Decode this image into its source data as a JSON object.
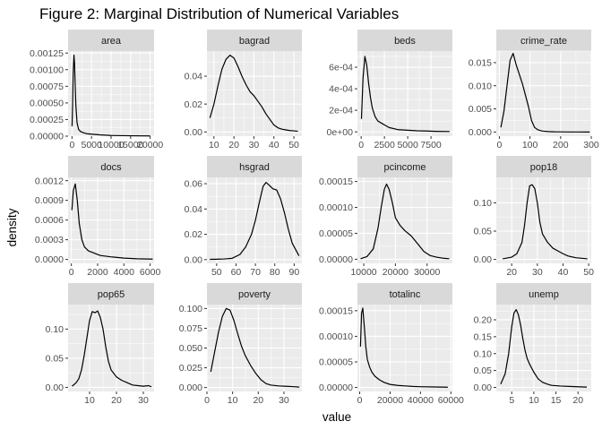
{
  "title": "Figure 2: Marginal Distribution of Numerical Variables",
  "chart_data": {
    "type": "line",
    "title": "Figure 2: Marginal Distribution of Numerical Variables",
    "xlabel": "value",
    "ylabel": "density",
    "facets": [
      {
        "name": "area",
        "xlim": [
          -1000,
          21000
        ],
        "ylim": [
          0,
          0.00128
        ],
        "xticks": [
          0,
          5000,
          10000,
          15000,
          20000
        ],
        "xtick_labels": [
          "0",
          "5000",
          "10000",
          "15000",
          "20000"
        ],
        "yticks": [
          0,
          0.00025,
          0.0005,
          0.00075,
          0.001,
          0.00125
        ],
        "ytick_labels": [
          "0.00000",
          "0.00025",
          "0.00050",
          "0.00075",
          "0.00100",
          "0.00125"
        ],
        "x": [
          15,
          150,
          300,
          500,
          650,
          800,
          1000,
          1300,
          1700,
          2200,
          3000,
          4000,
          5000,
          7000,
          10000,
          15000,
          20000
        ],
        "y": [
          0.00015,
          0.00045,
          0.00095,
          0.00122,
          0.0011,
          0.0008,
          0.00045,
          0.0002,
          0.0001,
          7e-05,
          5e-05,
          3.5e-05,
          3e-05,
          2e-05,
          1e-05,
          6e-06,
          3e-06
        ]
      },
      {
        "name": "bagrad",
        "xlim": [
          6.5,
          54
        ],
        "ylim": [
          -0.003,
          0.058
        ],
        "xticks": [
          10,
          20,
          30,
          40,
          50
        ],
        "xtick_labels": [
          "10",
          "20",
          "30",
          "40",
          "50"
        ],
        "yticks": [
          0,
          0.02,
          0.04
        ],
        "ytick_labels": [
          "0.00",
          "0.02",
          "0.04"
        ],
        "x": [
          8,
          10,
          12,
          14,
          16,
          18,
          20,
          22,
          24,
          26,
          28,
          30,
          32,
          34,
          36,
          38,
          40,
          42,
          44,
          46,
          48,
          50,
          52
        ],
        "y": [
          0.01,
          0.02,
          0.033,
          0.045,
          0.052,
          0.055,
          0.053,
          0.047,
          0.04,
          0.034,
          0.029,
          0.026,
          0.022,
          0.018,
          0.013,
          0.009,
          0.005,
          0.003,
          0.002,
          0.0015,
          0.001,
          0.0008,
          0.0005
        ]
      },
      {
        "name": "beds",
        "xlim": [
          -400,
          9800
        ],
        "ylim": [
          -4e-05,
          0.00075
        ],
        "xticks": [
          0,
          2500,
          5000,
          7500
        ],
        "xtick_labels": [
          "0",
          "2500",
          "5000",
          "7500"
        ],
        "yticks": [
          0,
          0.0002,
          0.0004,
          0.0006
        ],
        "ytick_labels": [
          "0e+00",
          "2e-04",
          "4e-04",
          "6e-04"
        ],
        "x": [
          30,
          200,
          400,
          600,
          800,
          1000,
          1200,
          1500,
          1800,
          2200,
          2600,
          3000,
          3500,
          4000,
          5000,
          6000,
          7000,
          8000,
          9500
        ],
        "y": [
          0.00012,
          0.0005,
          0.0007,
          0.00062,
          0.00045,
          0.00032,
          0.00022,
          0.00014,
          0.0001,
          8e-05,
          6e-05,
          4e-05,
          3e-05,
          2e-05,
          1.5e-05,
          1e-05,
          8e-06,
          5e-06,
          3e-06
        ]
      },
      {
        "name": "crime_rate",
        "xlim": [
          -10,
          300
        ],
        "ylim": [
          -0.0009,
          0.0175
        ],
        "xticks": [
          0,
          100,
          200,
          300
        ],
        "xtick_labels": [
          "0",
          "100",
          "200",
          "300"
        ],
        "yticks": [
          0,
          0.005,
          0.01,
          0.015
        ],
        "ytick_labels": [
          "0.000",
          "0.005",
          "0.010",
          "0.015"
        ],
        "x": [
          5,
          15,
          25,
          35,
          45,
          55,
          65,
          75,
          85,
          95,
          105,
          115,
          125,
          140,
          160,
          180,
          200,
          230,
          260,
          295
        ],
        "y": [
          0.001,
          0.0045,
          0.01,
          0.0155,
          0.017,
          0.0145,
          0.0125,
          0.0105,
          0.008,
          0.0055,
          0.0025,
          0.001,
          0.0005,
          0.0002,
          0.0001,
          5e-05,
          3e-05,
          1e-05,
          5e-06,
          2e-06
        ]
      },
      {
        "name": "docs",
        "xlim": [
          -250,
          6300
        ],
        "ylim": [
          -6e-05,
          0.00125
        ],
        "xticks": [
          0,
          2000,
          4000,
          6000
        ],
        "xtick_labels": [
          "0",
          "2000",
          "4000",
          "6000"
        ],
        "yticks": [
          0,
          0.0003,
          0.0006,
          0.0009,
          0.0012
        ],
        "ytick_labels": [
          "0.0000",
          "0.0003",
          "0.0006",
          "0.0009",
          "0.0012"
        ],
        "x": [
          40,
          150,
          300,
          450,
          600,
          800,
          1000,
          1300,
          1700,
          2200,
          3000,
          4000,
          5000,
          6200
        ],
        "y": [
          0.00075,
          0.00105,
          0.00115,
          0.0009,
          0.00055,
          0.0003,
          0.00019,
          0.00013,
          0.0001,
          6e-05,
          4e-05,
          2e-05,
          1e-05,
          5e-06
        ]
      },
      {
        "name": "hsgrad",
        "xlim": [
          45,
          94
        ],
        "ylim": [
          -0.003,
          0.065
        ],
        "xticks": [
          50,
          60,
          70,
          80,
          90
        ],
        "xtick_labels": [
          "50",
          "60",
          "70",
          "80",
          "90"
        ],
        "yticks": [
          0,
          0.02,
          0.04,
          0.06
        ],
        "ytick_labels": [
          "0.00",
          "0.02",
          "0.04",
          "0.06"
        ],
        "x": [
          46.5,
          50,
          54,
          58,
          62,
          65,
          68,
          70,
          72,
          74,
          75.5,
          77,
          79,
          81,
          83,
          85,
          87,
          89,
          92.5
        ],
        "y": [
          0.0002,
          0.0003,
          0.0005,
          0.001,
          0.004,
          0.01,
          0.02,
          0.031,
          0.045,
          0.058,
          0.061,
          0.059,
          0.056,
          0.055,
          0.048,
          0.037,
          0.024,
          0.013,
          0.003
        ]
      },
      {
        "name": "pcincome",
        "xlim": [
          8000,
          38000
        ],
        "ylim": [
          -8e-06,
          0.000158
        ],
        "xticks": [
          10000,
          20000,
          30000
        ],
        "xtick_labels": [
          "10000",
          "20000",
          "30000"
        ],
        "yticks": [
          0,
          5e-05,
          0.0001,
          0.00015
        ],
        "ytick_labels": [
          "0.00000",
          "0.00005",
          "0.00010",
          "0.00015"
        ],
        "x": [
          9000,
          11000,
          13000,
          14500,
          15500,
          16500,
          17200,
          18000,
          19000,
          20000,
          21500,
          23000,
          25000,
          27000,
          29000,
          31000,
          33000,
          35000,
          37000
        ],
        "y": [
          1e-06,
          5e-06,
          2e-05,
          6e-05,
          0.0001,
          0.000135,
          0.000145,
          0.000135,
          0.00011,
          8e-05,
          6.5e-05,
          5.5e-05,
          4.5e-05,
          3e-05,
          1.5e-05,
          7e-06,
          4e-06,
          2e-06,
          1e-06
        ]
      },
      {
        "name": "pop18",
        "xlim": [
          14,
          51
        ],
        "ylim": [
          -0.007,
          0.145
        ],
        "xticks": [
          20,
          30,
          40,
          50
        ],
        "xtick_labels": [
          "20",
          "30",
          "40",
          "50"
        ],
        "yticks": [
          0,
          0.05,
          0.1
        ],
        "ytick_labels": [
          "0.00",
          "0.05",
          "0.10"
        ],
        "x": [
          16.5,
          20,
          22,
          24,
          25,
          26,
          27,
          28,
          29,
          30,
          31,
          32,
          34,
          36,
          38,
          40,
          42,
          45,
          49.5
        ],
        "y": [
          0.001,
          0.004,
          0.01,
          0.03,
          0.06,
          0.1,
          0.13,
          0.132,
          0.125,
          0.1,
          0.065,
          0.045,
          0.03,
          0.02,
          0.015,
          0.01,
          0.006,
          0.003,
          0.001
        ]
      },
      {
        "name": "pop65",
        "xlim": [
          2,
          34
        ],
        "ylim": [
          -0.007,
          0.142
        ],
        "xticks": [
          10,
          20,
          30
        ],
        "xtick_labels": [
          "10",
          "20",
          "30"
        ],
        "yticks": [
          0,
          0.05,
          0.1
        ],
        "ytick_labels": [
          "0.00",
          "0.05",
          "0.10"
        ],
        "x": [
          3.5,
          5,
          6,
          7,
          8,
          9,
          10,
          11,
          12,
          13,
          14,
          15,
          16,
          17,
          18,
          20,
          22,
          24,
          26,
          28,
          30,
          32,
          33
        ],
        "y": [
          0.002,
          0.008,
          0.015,
          0.03,
          0.055,
          0.085,
          0.115,
          0.13,
          0.128,
          0.131,
          0.12,
          0.1,
          0.07,
          0.045,
          0.03,
          0.018,
          0.012,
          0.008,
          0.004,
          0.003,
          0.002,
          0.003,
          0.001
        ]
      },
      {
        "name": "poverty",
        "xlim": [
          0,
          37
        ],
        "ylim": [
          -0.005,
          0.105
        ],
        "xticks": [
          0,
          10,
          20,
          30
        ],
        "xtick_labels": [
          "0",
          "10",
          "20",
          "30"
        ],
        "yticks": [
          0,
          0.025,
          0.05,
          0.075,
          0.1
        ],
        "ytick_labels": [
          "0.000",
          "0.025",
          "0.050",
          "0.075",
          "0.100"
        ],
        "x": [
          1.5,
          3,
          4.5,
          6,
          7.5,
          9,
          10.5,
          12,
          13.5,
          15,
          17,
          19,
          21,
          23,
          25,
          28,
          31,
          34,
          36
        ],
        "y": [
          0.02,
          0.045,
          0.07,
          0.09,
          0.1,
          0.098,
          0.085,
          0.068,
          0.052,
          0.04,
          0.028,
          0.018,
          0.01,
          0.005,
          0.003,
          0.002,
          0.0015,
          0.001,
          0.0005
        ]
      },
      {
        "name": "totalinc",
        "xlim": [
          -1500,
          61000
        ],
        "ylim": [
          -7.8e-06,
          0.000162
        ],
        "xticks": [
          0,
          20000,
          40000,
          60000
        ],
        "xtick_labels": [
          "0",
          "20000",
          "40000",
          "60000"
        ],
        "yticks": [
          0,
          5e-05,
          0.0001,
          0.00015
        ],
        "ytick_labels": [
          "0.00000",
          "0.00005",
          "0.00010",
          "0.00015"
        ],
        "x": [
          500,
          1200,
          2000,
          3000,
          4000,
          5000,
          6500,
          8000,
          10000,
          13000,
          16000,
          20000,
          25000,
          30000,
          35000,
          40000,
          50000,
          58000
        ],
        "y": [
          8e-05,
          0.000145,
          0.000155,
          0.00012,
          8e-05,
          5.5e-05,
          4e-05,
          3e-05,
          2.2e-05,
          1.5e-05,
          1e-05,
          6e-06,
          4e-06,
          3e-06,
          2e-06,
          1.5e-06,
          1e-06,
          5e-07
        ]
      },
      {
        "name": "unemp",
        "xlim": [
          1.5,
          23
        ],
        "ylim": [
          -0.012,
          0.245
        ],
        "xticks": [
          5,
          10,
          15,
          20
        ],
        "xtick_labels": [
          "5",
          "10",
          "15",
          "20"
        ],
        "yticks": [
          0,
          0.05,
          0.1,
          0.15,
          0.2
        ],
        "ytick_labels": [
          "0.00",
          "0.05",
          "0.10",
          "0.15",
          "0.20"
        ],
        "x": [
          2.5,
          3.5,
          4.3,
          5,
          5.5,
          6,
          6.5,
          7,
          7.5,
          8,
          8.5,
          9,
          10,
          11,
          12,
          13,
          14,
          16,
          18,
          20,
          22
        ],
        "y": [
          0.01,
          0.04,
          0.1,
          0.18,
          0.22,
          0.23,
          0.215,
          0.185,
          0.145,
          0.11,
          0.085,
          0.07,
          0.045,
          0.025,
          0.015,
          0.01,
          0.006,
          0.004,
          0.003,
          0.002,
          0.001
        ]
      }
    ]
  }
}
